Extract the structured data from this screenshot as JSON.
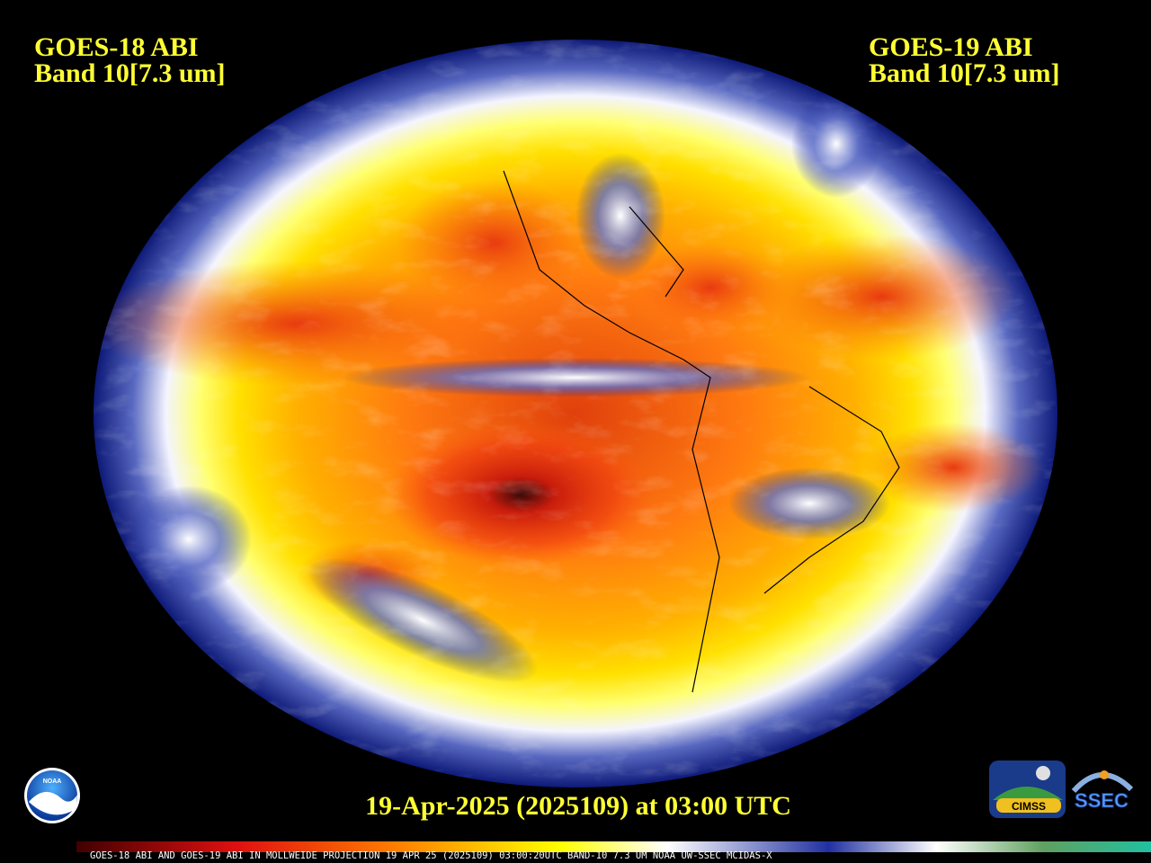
{
  "left_label": {
    "satellite": "GOES-18 ABI",
    "band": "Band 10[7.3 um]"
  },
  "right_label": {
    "satellite": "GOES-19 ABI",
    "band": "Band 10[7.3 um]"
  },
  "timestamp": "19-Apr-2025 (2025109) at 03:00 UTC",
  "footer": "GOES-18 ABI AND GOES-19 ABI IN MOLLWEIDE PROJECTION 19 APR 25 (2025109) 03:00:20UTC BAND-10 7.3 UM NOAA UW-SSEC MCIDAS-X",
  "logos": {
    "noaa": "NOAA",
    "cimss": "CIMSS",
    "ssec": "SSEC"
  }
}
